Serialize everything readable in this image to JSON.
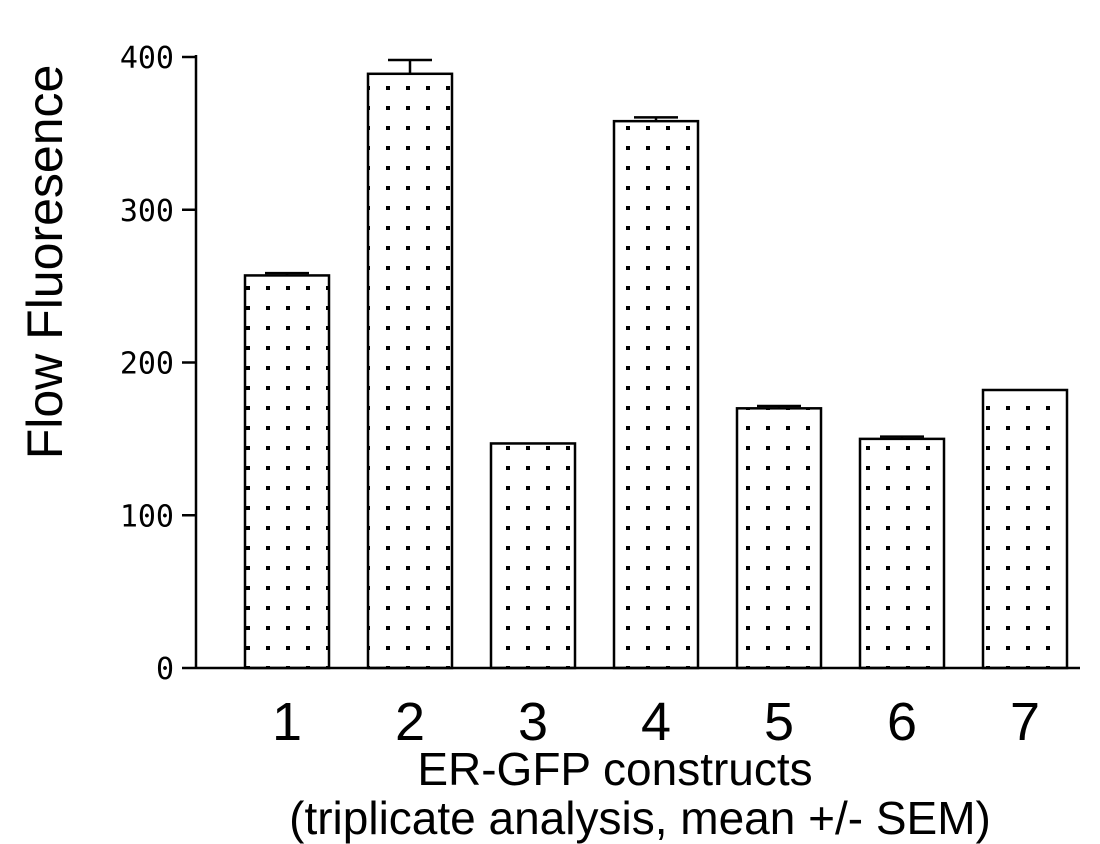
{
  "chart_data": {
    "type": "bar",
    "title": "",
    "categories": [
      "1",
      "2",
      "3",
      "4",
      "5",
      "6",
      "7"
    ],
    "values": [
      257,
      389,
      147,
      358,
      170,
      150,
      182
    ],
    "errors": [
      1.5,
      9,
      0,
      2.5,
      1.5,
      1.5,
      0
    ],
    "xlabel": "ER-GFP constructs",
    "xlabel2": "(triplicate analysis, mean +/- SEM)",
    "ylabel": "Flow Fluoresence",
    "ylim": [
      0,
      400
    ],
    "yticks": [
      0,
      100,
      200,
      300,
      400
    ],
    "grid": false,
    "bar_fill": "dotted",
    "colors": {
      "bar_edge": "#000000",
      "dot": "#000000",
      "background": "#ffffff"
    }
  }
}
